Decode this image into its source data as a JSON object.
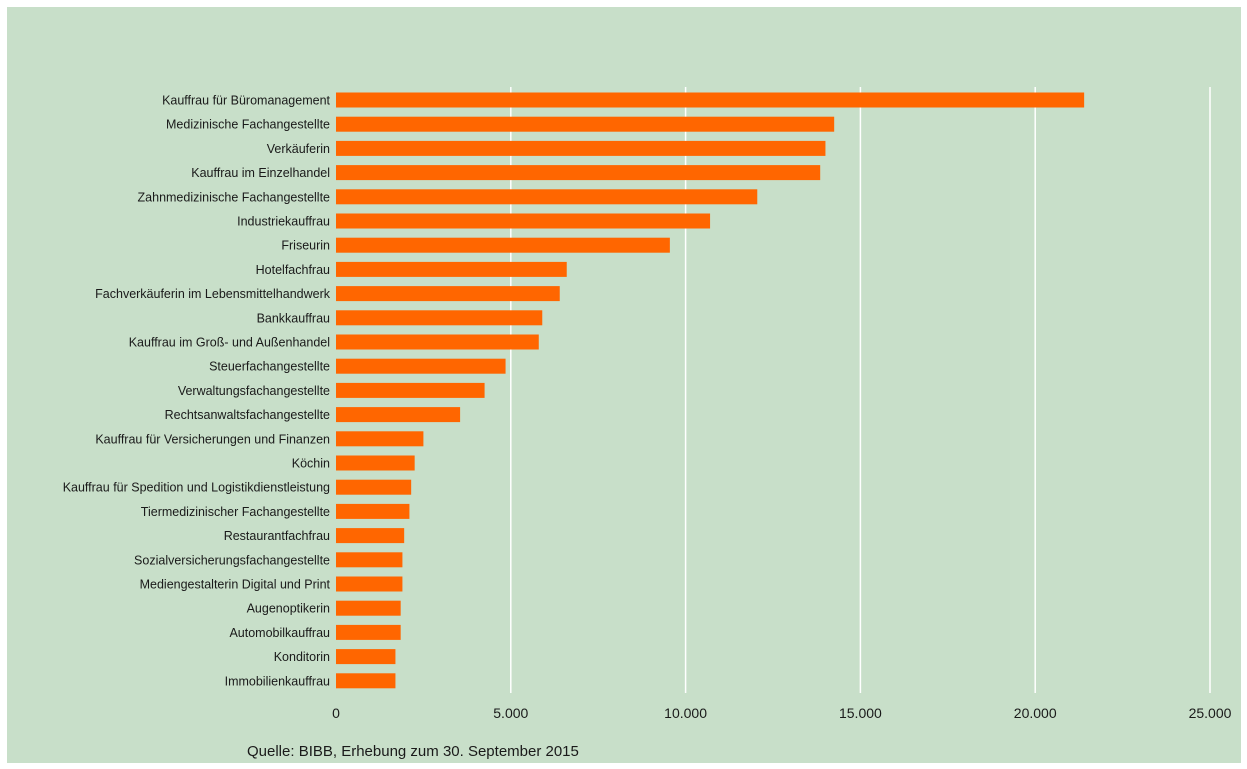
{
  "chart_data": {
    "type": "bar",
    "orientation": "horizontal",
    "categories": [
      "Kauffrau für Büromanagement",
      "Medizinische Fachangestellte",
      "Verkäuferin",
      "Kauffrau im Einzelhandel",
      "Zahnmedizinische Fachangestellte",
      "Industriekauffrau",
      "Friseurin",
      "Hotelfachfrau",
      "Fachverkäuferin im Lebensmittelhandwerk",
      "Bankkauffrau",
      "Kauffrau im Groß- und Außenhandel",
      "Steuerfachangestellte",
      "Verwaltungsfachangestellte",
      "Rechtsanwaltsfachangestellte",
      "Kauffrau für Versicherungen und Finanzen",
      "Köchin",
      "Kauffrau für Spedition und Logistikdienstleistung",
      "Tiermedizinischer Fachangestellte",
      "Restaurantfachfrau",
      "Sozialversicherungsfachangestellte",
      "Mediengestalterin Digital und Print",
      "Augenoptikerin",
      "Automobilkauffrau",
      "Konditorin",
      "Immobilienkauffrau"
    ],
    "values": [
      21400,
      14250,
      14000,
      13850,
      12050,
      10700,
      9550,
      6600,
      6400,
      5900,
      5800,
      4850,
      4250,
      3550,
      2500,
      2250,
      2150,
      2100,
      1950,
      1900,
      1900,
      1850,
      1850,
      1700,
      1700
    ],
    "xlim": [
      0,
      25000
    ],
    "xticks": [
      0,
      5000,
      10000,
      15000,
      20000,
      25000
    ],
    "xtick_labels": [
      "0",
      "5.000",
      "10.000",
      "15.000",
      "20.000",
      "25.000"
    ],
    "title": "",
    "xlabel": "",
    "ylabel": "",
    "grid": "vertical",
    "bar_color": "#ff6600",
    "background_color": "#c8dfc9",
    "grid_color": "#ffffff"
  },
  "source_note": "Quelle: BIBB, Erhebung zum 30. September 2015"
}
